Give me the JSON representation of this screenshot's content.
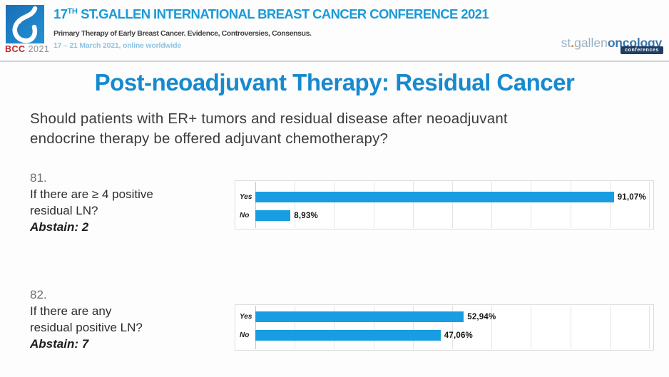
{
  "header": {
    "logo": {
      "bcc_label": "BCC",
      "year_label": "2021"
    },
    "title_prefix": "17",
    "title_sup": "TH",
    "title_rest": " ST.GALLEN INTERNATIONAL BREAST CANCER CONFERENCE 2021",
    "subtitle": "Primary Therapy of Early Breast Cancer. Evidence, Controversies, Consensus.",
    "dates": "17 – 21 March 2021, online worldwide",
    "brand": {
      "st": "st",
      "dot": ".",
      "gallen": "gallen",
      "oncology": "oncology",
      "conferences": "conferences"
    }
  },
  "slide": {
    "title": "Post-neoadjuvant Therapy: Residual Cancer",
    "question_line1": "Should patients with ER+ tumors and residual disease after neoadjuvant",
    "question_line2": "endocrine therapy be offered adjuvant chemotherapy?"
  },
  "polls": [
    {
      "number": "81.",
      "line1": "If there are ≥ 4 positive",
      "line2": "residual LN?",
      "abstain": "Abstain: 2"
    },
    {
      "number": "82.",
      "line1": "If there are any",
      "line2": "residual positive LN?",
      "abstain": "Abstain: 7"
    }
  ],
  "chart_data": [
    {
      "type": "bar",
      "orientation": "horizontal",
      "question": "81. If there are ≥ 4 positive residual LN?",
      "categories": [
        "Yes",
        "No"
      ],
      "values": [
        91.07,
        8.93
      ],
      "value_labels": [
        "91,07%",
        "8,93%"
      ],
      "xlim": [
        0,
        100
      ],
      "gridline_step_pct": 10,
      "grid": true,
      "legend": false,
      "bar_color": "#189de3"
    },
    {
      "type": "bar",
      "orientation": "horizontal",
      "question": "82. If there are any residual positive LN?",
      "categories": [
        "Yes",
        "No"
      ],
      "values": [
        52.94,
        47.06
      ],
      "value_labels": [
        "52,94%",
        "47,06%"
      ],
      "xlim": [
        0,
        100
      ],
      "gridline_step_pct": 10,
      "grid": true,
      "legend": false,
      "bar_color": "#189de3"
    }
  ],
  "colors": {
    "slide_title_blue": "#1789cf",
    "header_title_blue": "#1b9ad8",
    "dates_light_blue": "#8cc4e2",
    "bar_blue": "#189de3",
    "bcc_red": "#c3242a",
    "brand_gray_blue": "#9bb0c3",
    "brand_oncology_blue": "#3a77ac",
    "brand_badge_navy": "#1d3d63",
    "brand_dot_orange": "#e87d1e"
  }
}
